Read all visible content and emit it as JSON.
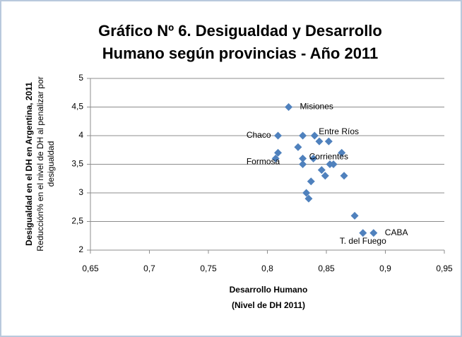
{
  "chart_data": {
    "type": "scatter",
    "title": [
      "Gráfico Nº 6. Desigualdad y Desarrollo",
      "Humano según provincias - Año 2011"
    ],
    "x_label": [
      "Desarrollo Humano",
      "(Nivel de DH 2011)"
    ],
    "y_label": [
      "Desigualdad  en el DH en Argentina, 2011",
      "Reducción% en el nivel de DH al penalizar por",
      "desigualdad"
    ],
    "color": "#4f81bd",
    "grid": true,
    "xlim": [
      0.65,
      0.95
    ],
    "xticks": [
      {
        "value": 0.65,
        "label": "0,65"
      },
      {
        "value": 0.7,
        "label": "0,7"
      },
      {
        "value": 0.75,
        "label": "0,75"
      },
      {
        "value": 0.8,
        "label": "0,8"
      },
      {
        "value": 0.85,
        "label": "0,85"
      },
      {
        "value": 0.9,
        "label": "0,9"
      },
      {
        "value": 0.95,
        "label": "0,95"
      }
    ],
    "ylim": [
      2,
      5
    ],
    "yticks": [
      2,
      {
        "value": 2.5,
        "label": "2,5"
      },
      3,
      {
        "value": 3.5,
        "label": "3,5"
      },
      4,
      {
        "value": 4.5,
        "label": "4,5"
      },
      5
    ],
    "x": [
      0.818,
      0.809,
      0.83,
      0.84,
      0.844,
      0.852,
      0.826,
      0.809,
      0.863,
      0.807,
      0.83,
      0.839,
      0.83,
      0.853,
      0.856,
      0.846,
      0.849,
      0.865,
      0.837,
      0.833,
      0.835,
      0.874,
      0.881,
      0.89
    ],
    "values": [
      4.5,
      4.0,
      4.0,
      4.0,
      3.9,
      3.9,
      3.8,
      3.7,
      3.7,
      3.6,
      3.6,
      3.6,
      3.5,
      3.5,
      3.5,
      3.4,
      3.3,
      3.3,
      3.2,
      3.0,
      2.9,
      2.6,
      2.3,
      2.3
    ],
    "point_labels": [
      "Misiones",
      "Chaco",
      null,
      "Entre Ríos",
      null,
      null,
      null,
      null,
      null,
      "Formosa",
      null,
      "Corrientes",
      null,
      null,
      null,
      null,
      null,
      null,
      null,
      null,
      null,
      null,
      "T. del Fuego",
      "CABA"
    ]
  }
}
